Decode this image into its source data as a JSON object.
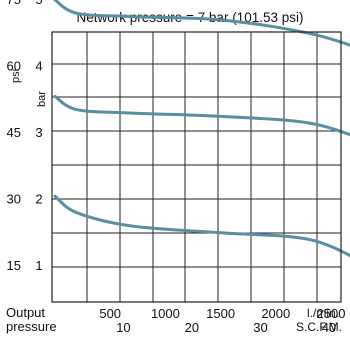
{
  "chart_data": {
    "type": "line",
    "title": "Network pressure = 7 bar (101.53 psi)",
    "ylabel_psi": "psi",
    "ylabel_bar": "bar",
    "xlabel_left": "Output",
    "xlabel_left2": "pressure",
    "x_unit_lpm": "l./min.",
    "x_unit_scfm": "S.C.F.M.",
    "xlim_lpm": [
      0,
      3000
    ],
    "ylim_bar": [
      0,
      7.5
    ],
    "x_ticks_lpm": [
      500,
      1000,
      1500,
      2000,
      2500
    ],
    "x_ticks_scfm": [
      {
        "label": "10",
        "lpm": 283
      },
      {
        "label": "20",
        "lpm": 566
      },
      {
        "label": "30",
        "lpm": 850
      },
      {
        "label": "40",
        "lpm": 1133
      }
    ],
    "y_ticks": [
      {
        "bar": "1",
        "psi": "15",
        "value": 1
      },
      {
        "bar": "2",
        "psi": "30",
        "value": 2
      },
      {
        "bar": "3",
        "psi": "45",
        "value": 3
      },
      {
        "bar": "4",
        "psi": "60",
        "value": 4
      },
      {
        "bar": "5",
        "psi": "75",
        "value": 5
      }
    ],
    "grid": true,
    "series": [
      {
        "x": [
          0,
          200,
          700,
          1500,
          2300,
          2800
        ],
        "y": [
          5.0,
          4.8,
          4.75,
          4.7,
          4.5,
          4.25
        ]
      },
      {
        "x": [
          0,
          200,
          700,
          1500,
          2300,
          2800
        ],
        "y": [
          3.55,
          3.35,
          3.3,
          3.25,
          3.15,
          2.9
        ]
      },
      {
        "x": [
          0,
          200,
          700,
          1500,
          2300,
          2800
        ],
        "y": [
          2.05,
          1.8,
          1.6,
          1.5,
          1.4,
          1.05
        ]
      }
    ],
    "line_color": "#5a8ea0"
  }
}
